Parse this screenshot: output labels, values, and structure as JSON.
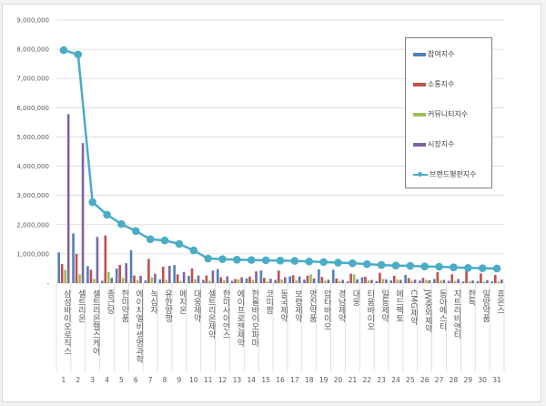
{
  "chart_data": {
    "type": "bar",
    "title": "",
    "xlabel": "",
    "ylabel": "",
    "ylim": [
      0,
      9000000
    ],
    "yticks": [
      0,
      1000000,
      2000000,
      3000000,
      4000000,
      5000000,
      6000000,
      7000000,
      8000000,
      9000000
    ],
    "ytick_labels": [
      "-",
      "1,000,000",
      "2,000,000",
      "3,000,000",
      "4,000,000",
      "5,000,000",
      "6,000,000",
      "7,000,000",
      "8,000,000",
      "9,000,000"
    ],
    "grid": true,
    "legend_position": "top-right",
    "categories": [
      "삼성바이오로직스",
      "셀트리온",
      "셀트리온헬스케어",
      "종근당",
      "한미약품",
      "에이치엘비생명과학",
      "녹십자",
      "유한양행",
      "메지온",
      "대웅제약",
      "셀트리온제약",
      "한미사이언스",
      "에이프로젠제약",
      "한올바이오파마",
      "코미팜",
      "동국제약",
      "보령제약",
      "영진약품",
      "압타바이오",
      "경남제약",
      "대웅",
      "티움바이오",
      "일동제약",
      "메드팩토",
      "CMG제약",
      "JW중외제약",
      "동아에스티",
      "지트리비앤티",
      "한독",
      "일양약품",
      "휴온스"
    ],
    "ranks": [
      "1",
      "2",
      "3",
      "4",
      "5",
      "6",
      "7",
      "8",
      "9",
      "10",
      "11",
      "12",
      "13",
      "14",
      "15",
      "16",
      "17",
      "18",
      "19",
      "20",
      "21",
      "22",
      "23",
      "24",
      "25",
      "26",
      "27",
      "28",
      "29",
      "30",
      "31"
    ],
    "series": [
      {
        "name": "참여지수",
        "kind": "bar",
        "color": "#4f81bd",
        "values": [
          1050000,
          1700000,
          580000,
          80000,
          500000,
          1130000,
          90000,
          130000,
          620000,
          250000,
          110000,
          480000,
          80000,
          160000,
          430000,
          110000,
          230000,
          120000,
          470000,
          460000,
          60000,
          200000,
          70000,
          90000,
          280000,
          90000,
          140000,
          80000,
          60000,
          70000,
          60000
        ]
      },
      {
        "name": "소통지수",
        "kind": "bar",
        "color": "#c0504d",
        "values": [
          650000,
          1000000,
          460000,
          1630000,
          620000,
          260000,
          830000,
          560000,
          300000,
          500000,
          260000,
          200000,
          140000,
          220000,
          180000,
          430000,
          270000,
          250000,
          210000,
          160000,
          320000,
          220000,
          350000,
          250000,
          170000,
          180000,
          380000,
          300000,
          420000,
          330000,
          280000
        ]
      },
      {
        "name": "커뮤니티지수",
        "kind": "bar",
        "color": "#9bbb59",
        "values": [
          450000,
          300000,
          140000,
          380000,
          180000,
          100000,
          200000,
          110000,
          70000,
          130000,
          80000,
          90000,
          130000,
          110000,
          60000,
          120000,
          90000,
          300000,
          80000,
          70000,
          300000,
          90000,
          140000,
          120000,
          80000,
          110000,
          90000,
          70000,
          60000,
          50000,
          60000
        ]
      },
      {
        "name": "시장지수",
        "kind": "bar",
        "color": "#8064a2",
        "values": [
          5780000,
          4790000,
          1580000,
          180000,
          680000,
          250000,
          320000,
          590000,
          380000,
          260000,
          430000,
          230000,
          200000,
          400000,
          150000,
          200000,
          230000,
          160000,
          120000,
          110000,
          130000,
          110000,
          130000,
          110000,
          120000,
          100000,
          110000,
          140000,
          90000,
          100000,
          120000
        ]
      },
      {
        "name": "브랜드평판지수",
        "kind": "line",
        "color": "#4bacc6",
        "values": [
          7970000,
          7820000,
          2770000,
          2340000,
          2020000,
          1780000,
          1500000,
          1460000,
          1340000,
          1120000,
          840000,
          820000,
          800000,
          790000,
          780000,
          770000,
          760000,
          740000,
          720000,
          700000,
          680000,
          650000,
          620000,
          600000,
          590000,
          570000,
          560000,
          540000,
          520000,
          510000,
          500000
        ]
      }
    ]
  }
}
